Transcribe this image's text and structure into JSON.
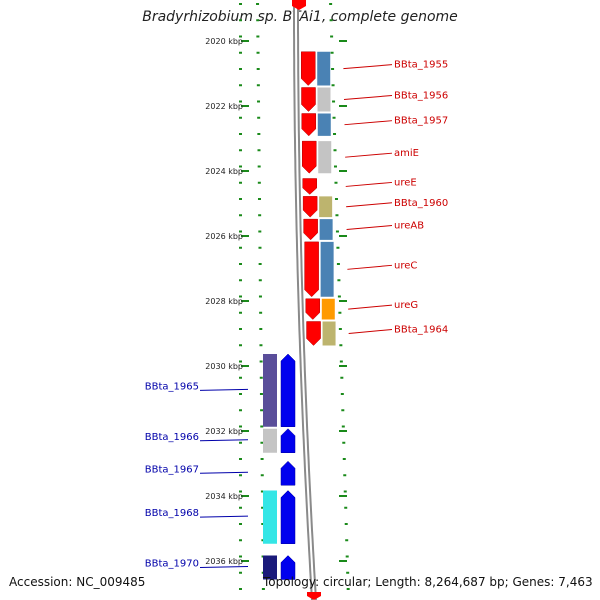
{
  "title": "Bradyrhizobium sp. BTAi1, complete genome",
  "footer": {
    "accession": "Accession: NC_009485",
    "stats": "Topology: circular; Length: 8,264,687 bp; Genes: 7,463"
  },
  "colors": {
    "forward_cds": "#ff0000",
    "reverse_cds": "#0000ee",
    "forward_label": "#cc0000",
    "reverse_label": "#0000aa",
    "axis_dots": "#1a8a1a",
    "backbone": "#8a8a8a"
  },
  "scale_ticks": [
    {
      "kbp": 2020,
      "label": "2020 kbp"
    },
    {
      "kbp": 2022,
      "label": "2022 kbp"
    },
    {
      "kbp": 2024,
      "label": "2024 kbp"
    },
    {
      "kbp": 2026,
      "label": "2026 kbp"
    },
    {
      "kbp": 2028,
      "label": "2028 kbp"
    },
    {
      "kbp": 2030,
      "label": "2030 kbp"
    },
    {
      "kbp": 2032,
      "label": "2032 kbp"
    },
    {
      "kbp": 2034,
      "label": "2034 kbp"
    },
    {
      "kbp": 2036,
      "label": "2036 kbp"
    }
  ],
  "forward_genes": [
    {
      "label": "BBta_1955",
      "start": 2020.3,
      "end": 2021.4,
      "category_color": "#4a82b4"
    },
    {
      "label": "BBta_1956",
      "start": 2021.4,
      "end": 2022.2,
      "category_color": "#c4c4c4"
    },
    {
      "label": "BBta_1957",
      "start": 2022.2,
      "end": 2022.95,
      "category_color": "#4a82b4"
    },
    {
      "label": "amiE",
      "start": 2023.05,
      "end": 2024.1,
      "category_color": "#c4c4c4"
    },
    {
      "label": "ureE",
      "start": 2024.2,
      "end": 2024.75,
      "category_color": ""
    },
    {
      "label": "BBta_1960",
      "start": 2024.75,
      "end": 2025.45,
      "category_color": "#bdb46e"
    },
    {
      "label": "ureAB",
      "start": 2025.45,
      "end": 2026.15,
      "category_color": "#4a82b4"
    },
    {
      "label": "ureC",
      "start": 2026.15,
      "end": 2027.9,
      "category_color": "#4a82b4"
    },
    {
      "label": "ureG",
      "start": 2027.9,
      "end": 2028.6,
      "category_color": "#ff9a00"
    },
    {
      "label": "BBta_1964",
      "start": 2028.6,
      "end": 2029.4,
      "category_color": "#bdb46e"
    }
  ],
  "reverse_genes": [
    {
      "label": "BBta_1965",
      "start": 2029.6,
      "end": 2031.9,
      "category_color": "#5a4e9a"
    },
    {
      "label": "BBta_1966",
      "start": 2031.9,
      "end": 2032.7,
      "category_color": "#c4c4c4"
    },
    {
      "label": "BBta_1967",
      "start": 2032.9,
      "end": 2033.7,
      "category_color": ""
    },
    {
      "label": "BBta_1968",
      "start": 2033.8,
      "end": 2035.5,
      "category_color": "#34e6e6"
    },
    {
      "label": "BBta_1970",
      "start": 2035.8,
      "end": 2036.6,
      "category_color": "#1a1a7a"
    }
  ]
}
